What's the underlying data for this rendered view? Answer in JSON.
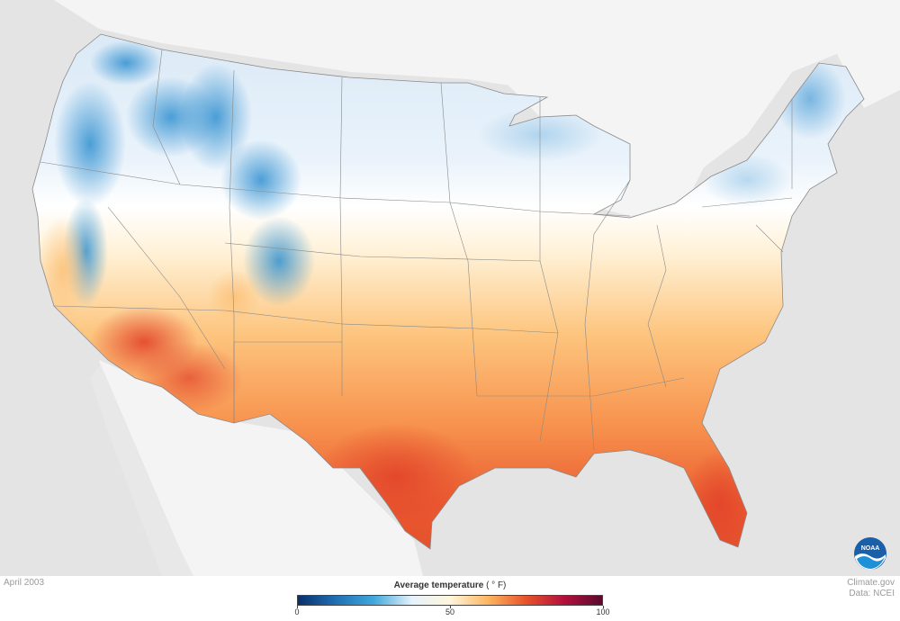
{
  "map": {
    "period_label": "April 2003",
    "credit_line1": "Climate.gov",
    "credit_line2": "Data: NCEI",
    "logo_text": "NOAA",
    "legend": {
      "title": "Average temperature",
      "unit": "( ° F)",
      "min": 0,
      "max": 100,
      "ticks": [
        {
          "value": 0,
          "label": "0"
        },
        {
          "value": 50,
          "label": "50"
        },
        {
          "value": 100,
          "label": "100"
        }
      ],
      "colors": [
        "#08306b",
        "#1f6fb4",
        "#41a8dc",
        "#e6f2fb",
        "#fff6dc",
        "#fdb660",
        "#e8522a",
        "#b30f3c",
        "#5a0a2e"
      ]
    },
    "colors": {
      "background": "#e4e4e4",
      "land_other": "#f4f4f4",
      "cold": "#4aa0d8",
      "cool": "#dbeaf6",
      "mild": "#ffffff",
      "warm": "#fcc880",
      "hot": "#ea5a30",
      "state_lines": "#8a8a8a"
    }
  }
}
